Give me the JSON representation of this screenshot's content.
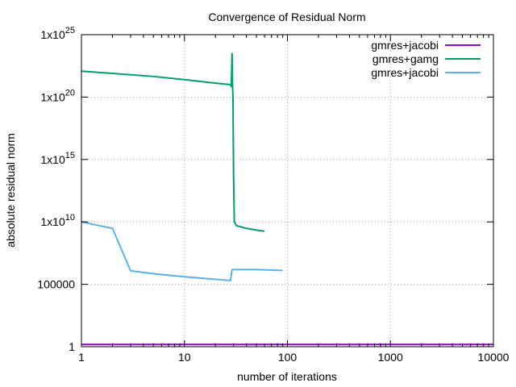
{
  "chart_data": {
    "type": "line",
    "title": "Convergence of Residual Norm",
    "xlabel": "number of iterations",
    "ylabel": "absolute residual norm",
    "x_scale": "log",
    "y_scale": "log",
    "xlim": [
      1,
      10000
    ],
    "ylim": [
      1,
      1e+25
    ],
    "grid": true,
    "legend_position": "top-right",
    "x_ticks": [
      {
        "value": 1,
        "label": "1"
      },
      {
        "value": 10,
        "label": "10"
      },
      {
        "value": 100,
        "label": "100"
      },
      {
        "value": 1000,
        "label": "1000"
      },
      {
        "value": 10000,
        "label": "10000"
      }
    ],
    "y_ticks": [
      {
        "value": 1,
        "base": "1",
        "exp": ""
      },
      {
        "value": 100000,
        "base": "100000",
        "exp": ""
      },
      {
        "value": 10000000000.0,
        "base": "1x10",
        "exp": "10"
      },
      {
        "value": 1000000000000000.0,
        "base": "1x10",
        "exp": "15"
      },
      {
        "value": 1e+20,
        "base": "1x10",
        "exp": "20"
      },
      {
        "value": 1e+25,
        "base": "1x10",
        "exp": "25"
      }
    ],
    "series": [
      {
        "name": "gmres+jacobi",
        "color": "#9400d3",
        "points": [
          [
            1,
            1.5
          ],
          [
            10000,
            1.5
          ]
        ]
      },
      {
        "name": "gmres+gamg",
        "color": "#009e73",
        "points": [
          [
            1,
            1.2e+22
          ],
          [
            5,
            4.5e+21
          ],
          [
            10,
            2.5e+21
          ],
          [
            20,
            1.3e+21
          ],
          [
            28,
            1e+21
          ],
          [
            28.5,
            7e+20
          ],
          [
            29,
            3e+23
          ],
          [
            29.3,
            1e+21
          ],
          [
            29.6,
            1e+20
          ],
          [
            30,
            50000000000000.0
          ],
          [
            30.5,
            10000000000.0
          ],
          [
            32,
            5000000000.0
          ],
          [
            40,
            3000000000.0
          ],
          [
            50,
            2200000000.0
          ],
          [
            60,
            1800000000.0
          ]
        ]
      },
      {
        "name": "gmres+jacobi",
        "color": "#56b4e9",
        "points": [
          [
            1,
            10000000000.0
          ],
          [
            2,
            3000000000.0
          ],
          [
            3,
            1200000.0
          ],
          [
            5,
            700000.0
          ],
          [
            10,
            400000.0
          ],
          [
            20,
            250000.0
          ],
          [
            28,
            200000.0
          ],
          [
            29,
            1500000.0
          ],
          [
            50,
            1500000.0
          ],
          [
            90,
            1300000.0
          ]
        ]
      }
    ]
  }
}
